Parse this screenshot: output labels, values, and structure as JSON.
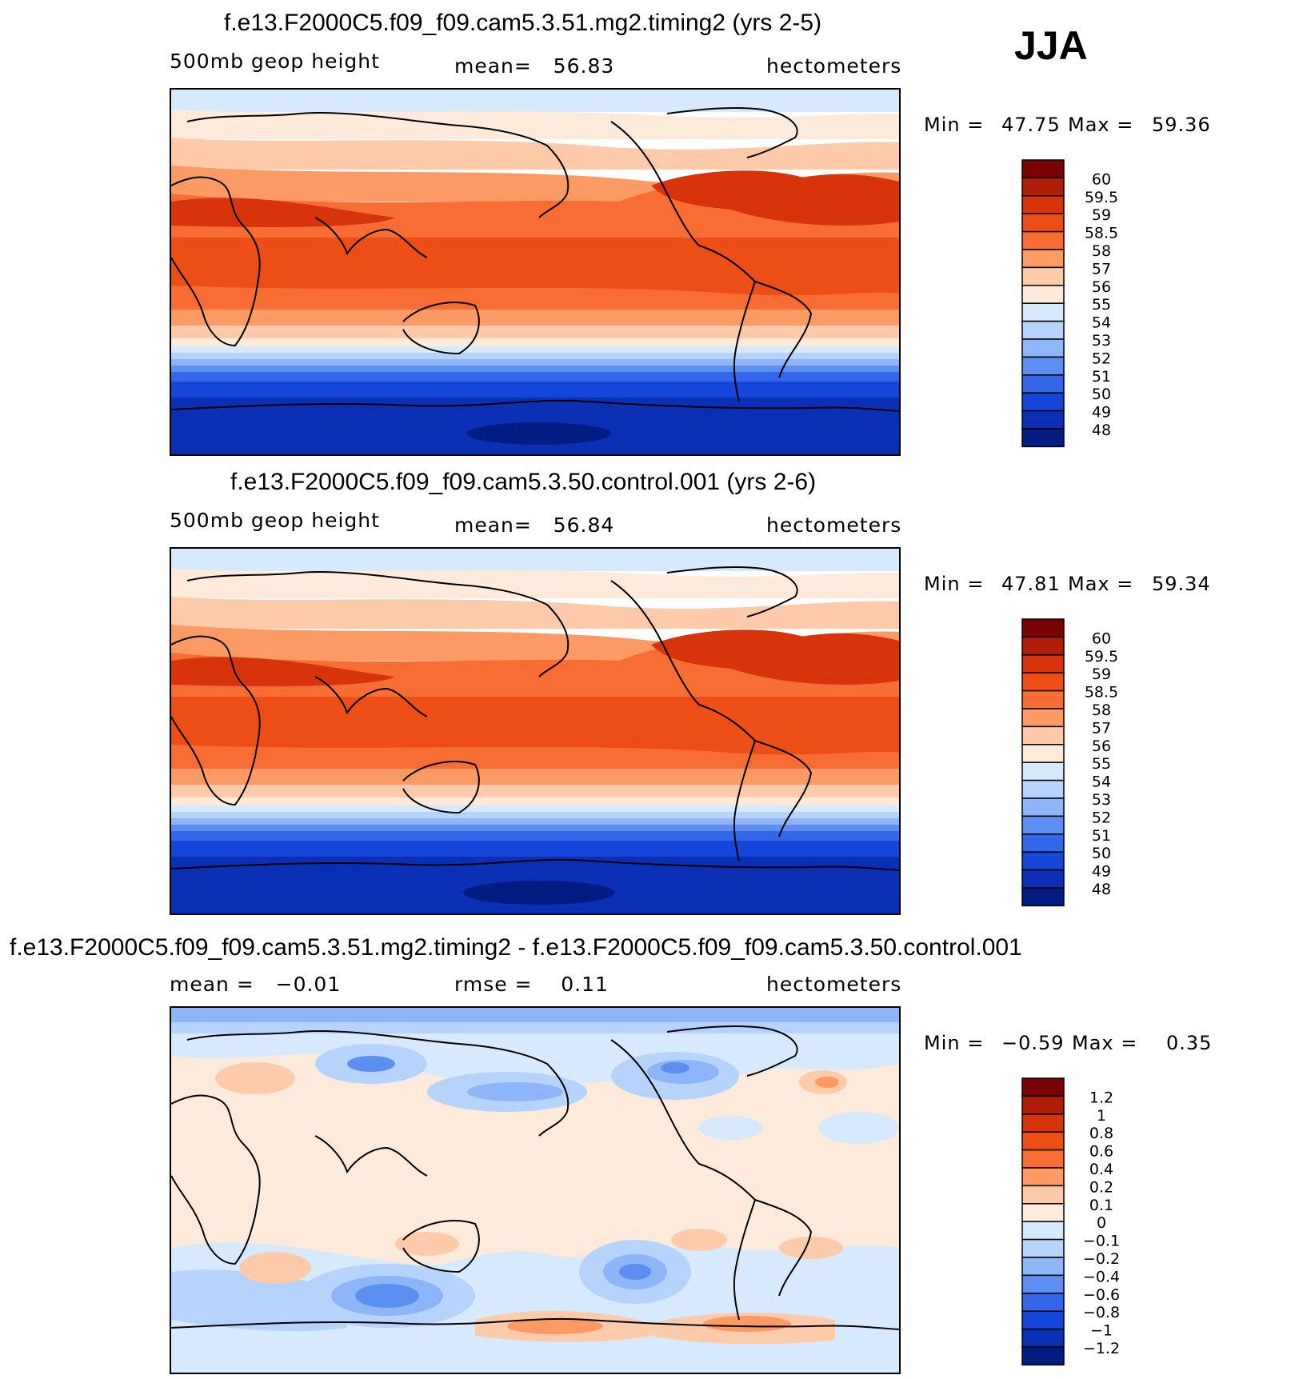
{
  "season": "JJA",
  "panels": [
    {
      "title": "f.e13.F2000C5.f09_f09.cam5.3.51.mg2.timing2 (yrs 2-5)",
      "left_label": "500mb geop height",
      "center_label": "mean=   56.83",
      "right_label": "hectometers",
      "min_label": "Min =",
      "min_value": "47.75",
      "max_label": "Max =",
      "max_value": "59.36"
    },
    {
      "title": "f.e13.F2000C5.f09_f09.cam5.3.50.control.001 (yrs 2-6)",
      "left_label": "500mb geop height",
      "center_label": "mean=   56.84",
      "right_label": "hectometers",
      "min_label": "Min =",
      "min_value": "47.81",
      "max_label": "Max =",
      "max_value": "59.34"
    },
    {
      "title": "f.e13.F2000C5.f09_f09.cam5.3.51.mg2.timing2 - f.e13.F2000C5.f09_f09.cam5.3.50.control.001",
      "left_label": "mean =   −0.01",
      "center_label": "rmse =    0.11",
      "right_label": "hectometers",
      "min_label": "Min =",
      "min_value": "−0.59",
      "max_label": "Max =",
      "max_value": "0.35"
    }
  ],
  "colorbars": {
    "height_levels": [
      "60",
      "59.5",
      "59",
      "58.5",
      "58",
      "57",
      "56",
      "55",
      "54",
      "53",
      "52",
      "51",
      "50",
      "49",
      "48"
    ],
    "height_colors": [
      "#7a0403",
      "#b01e0a",
      "#d8340c",
      "#ec4e16",
      "#f76d33",
      "#fb9a64",
      "#fdcbaa",
      "#feeada",
      "#d7eafd",
      "#b6d3fb",
      "#8db5f8",
      "#5d8ff2",
      "#3466ea",
      "#1645d9",
      "#0a2fb5",
      "#021d82"
    ],
    "diff_levels": [
      "1.2",
      "1",
      "0.8",
      "0.6",
      "0.4",
      "0.2",
      "0.1",
      "0",
      "−0.1",
      "−0.2",
      "−0.4",
      "−0.6",
      "−0.8",
      "−1",
      "−1.2"
    ],
    "diff_colors": [
      "#7a0403",
      "#b01e0a",
      "#d8340c",
      "#ec4e16",
      "#f76d33",
      "#fb9a64",
      "#fdcbaa",
      "#feeada",
      "#d7eafd",
      "#b6d3fb",
      "#8db5f8",
      "#5d8ff2",
      "#3466ea",
      "#1645d9",
      "#0a2fb5",
      "#021d82"
    ]
  },
  "chart_data": [
    {
      "type": "heatmap",
      "title": "f.e13.F2000C5.f09_f09.cam5.3.51.mg2.timing2 (yrs 2-5)",
      "variable": "500mb geop height",
      "units": "hectometers",
      "mean": 56.83,
      "min": 47.75,
      "max": 59.36,
      "color_levels": [
        48,
        49,
        50,
        51,
        52,
        53,
        54,
        55,
        56,
        57,
        58,
        58.5,
        59,
        59.5,
        60
      ],
      "y_latitudes": [
        90,
        75,
        60,
        45,
        30,
        15,
        0,
        -15,
        -30,
        -45,
        -60,
        -75,
        -90
      ],
      "approx_zonal_values": [
        54.5,
        55.3,
        56.2,
        57.5,
        58.6,
        58.4,
        58.3,
        58.0,
        57.2,
        55.3,
        52.0,
        49.6,
        48.9
      ]
    },
    {
      "type": "heatmap",
      "title": "f.e13.F2000C5.f09_f09.cam5.3.50.control.001 (yrs 2-6)",
      "variable": "500mb geop height",
      "units": "hectometers",
      "mean": 56.84,
      "min": 47.81,
      "max": 59.34,
      "color_levels": [
        48,
        49,
        50,
        51,
        52,
        53,
        54,
        55,
        56,
        57,
        58,
        58.5,
        59,
        59.5,
        60
      ],
      "y_latitudes": [
        90,
        75,
        60,
        45,
        30,
        15,
        0,
        -15,
        -30,
        -45,
        -60,
        -75,
        -90
      ],
      "approx_zonal_values": [
        54.5,
        55.3,
        56.2,
        57.5,
        58.6,
        58.4,
        58.3,
        58.0,
        57.2,
        55.3,
        52.0,
        49.6,
        48.9
      ]
    },
    {
      "type": "heatmap",
      "title": "f.e13.F2000C5.f09_f09.cam5.3.51.mg2.timing2 - f.e13.F2000C5.f09_f09.cam5.3.50.control.001",
      "units": "hectometers",
      "mean": -0.01,
      "rmse": 0.11,
      "min": -0.59,
      "max": 0.35,
      "color_levels": [
        -1.2,
        -1,
        -0.8,
        -0.6,
        -0.4,
        -0.2,
        -0.1,
        0,
        0.1,
        0.2,
        0.4,
        0.6,
        0.8,
        1,
        1.2
      ]
    }
  ]
}
